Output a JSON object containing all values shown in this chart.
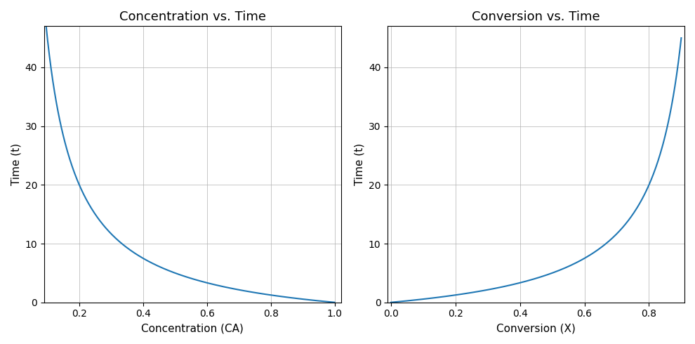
{
  "CA0": 1.0,
  "k": 0.2,
  "CA_min": 0.09,
  "CA_max": 1.0,
  "X_min": 0.0,
  "X_max": 0.9,
  "n_points": 500,
  "line_color": "#1f77b4",
  "line_width": 1.5,
  "title_left": "Concentration vs. Time",
  "title_right": "Conversion vs. Time",
  "xlabel_left": "Concentration (CA)",
  "xlabel_right": "Conversion (X)",
  "ylabel": "Time (t)",
  "grid_color": "#b0b0b0",
  "grid_linestyle": "-",
  "grid_linewidth": 0.5,
  "figsize": [
    9.9,
    4.9
  ],
  "dpi": 100,
  "ylim_left": [
    0,
    47
  ],
  "ylim_right": [
    0,
    47
  ],
  "xlim_left": [
    0.09,
    1.02
  ],
  "xlim_right": [
    -0.01,
    0.91
  ]
}
